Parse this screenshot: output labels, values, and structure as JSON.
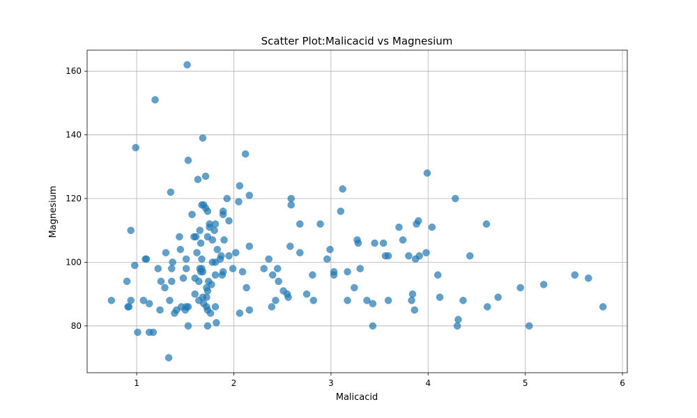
{
  "chart_data": {
    "type": "scatter",
    "title": "Scatter Plot:Malicacid vs Magnesium",
    "xlabel": "Malicacid",
    "ylabel": "Magnesium",
    "xlim": [
      0.49,
      6.05
    ],
    "ylim": [
      65.3,
      166.6
    ],
    "xticks": [
      1,
      2,
      3,
      4,
      5,
      6
    ],
    "xtick_labels": [
      "1",
      "2",
      "3",
      "4",
      "5",
      "6"
    ],
    "yticks": [
      80,
      100,
      120,
      140,
      160
    ],
    "ytick_labels": [
      "80",
      "100",
      "120",
      "140",
      "160"
    ],
    "grid": true,
    "marker_color": "#1f77b4",
    "marker_opacity": 0.7,
    "points": [
      [
        1.52,
        162
      ],
      [
        1.19,
        151
      ],
      [
        0.99,
        136
      ],
      [
        1.68,
        139
      ],
      [
        2.12,
        134
      ],
      [
        1.53,
        132
      ],
      [
        1.35,
        122
      ],
      [
        1.63,
        126
      ],
      [
        1.71,
        127
      ],
      [
        2.06,
        124
      ],
      [
        2.16,
        121
      ],
      [
        3.12,
        123
      ],
      [
        3.99,
        128
      ],
      [
        4.28,
        120
      ],
      [
        2.59,
        120
      ],
      [
        2.59,
        118
      ],
      [
        2.05,
        119
      ],
      [
        1.93,
        120
      ],
      [
        1.67,
        118
      ],
      [
        1.69,
        118
      ],
      [
        1.71,
        117
      ],
      [
        1.73,
        116
      ],
      [
        1.57,
        115
      ],
      [
        1.89,
        116
      ],
      [
        1.89,
        115
      ],
      [
        1.95,
        113
      ],
      [
        3.1,
        116
      ],
      [
        3.9,
        113
      ],
      [
        3.88,
        112
      ],
      [
        4.04,
        111
      ],
      [
        3.7,
        111
      ],
      [
        4.6,
        112
      ],
      [
        2.68,
        112
      ],
      [
        2.89,
        112
      ],
      [
        0.94,
        110
      ],
      [
        1.65,
        110
      ],
      [
        1.75,
        111
      ],
      [
        1.75,
        112
      ],
      [
        1.81,
        112
      ],
      [
        1.8,
        110
      ],
      [
        1.59,
        108
      ],
      [
        1.61,
        108
      ],
      [
        1.44,
        108
      ],
      [
        1.73,
        108
      ],
      [
        1.78,
        107
      ],
      [
        1.9,
        107
      ],
      [
        3.27,
        107
      ],
      [
        3.74,
        107
      ],
      [
        1.66,
        106
      ],
      [
        3.28,
        106
      ],
      [
        3.45,
        106
      ],
      [
        3.54,
        106
      ],
      [
        2.16,
        105
      ],
      [
        2.58,
        105
      ],
      [
        1.45,
        104
      ],
      [
        1.83,
        104
      ],
      [
        2.99,
        104
      ],
      [
        1.3,
        103
      ],
      [
        1.62,
        103
      ],
      [
        2.02,
        103
      ],
      [
        2.68,
        103
      ],
      [
        3.98,
        103
      ],
      [
        1.95,
        102
      ],
      [
        3.56,
        102
      ],
      [
        3.59,
        102
      ],
      [
        3.8,
        102
      ],
      [
        3.91,
        102
      ],
      [
        4.43,
        102
      ],
      [
        1.87,
        102
      ],
      [
        1.67,
        101
      ],
      [
        1.51,
        101
      ],
      [
        1.1,
        101
      ],
      [
        1.09,
        101
      ],
      [
        1.86,
        101
      ],
      [
        2.36,
        101
      ],
      [
        2.96,
        101
      ],
      [
        3.87,
        101
      ],
      [
        1.37,
        100
      ],
      [
        1.78,
        100
      ],
      [
        1.81,
        100
      ],
      [
        0.98,
        99
      ],
      [
        1.22,
        98
      ],
      [
        1.36,
        98
      ],
      [
        1.51,
        98
      ],
      [
        1.65,
        98
      ],
      [
        1.68,
        97
      ],
      [
        1.66,
        97
      ],
      [
        1.67,
        98
      ],
      [
        1.99,
        98
      ],
      [
        2.31,
        98
      ],
      [
        2.45,
        98
      ],
      [
        3.3,
        98
      ],
      [
        2.09,
        97
      ],
      [
        3.03,
        97
      ],
      [
        3.17,
        97
      ],
      [
        1.89,
        97
      ],
      [
        1.81,
        96
      ],
      [
        1.88,
        96
      ],
      [
        2.4,
        96
      ],
      [
        2.81,
        96
      ],
      [
        3.03,
        96
      ],
      [
        4.1,
        96
      ],
      [
        5.51,
        96
      ],
      [
        1.48,
        95
      ],
      [
        1.6,
        95
      ],
      [
        1.64,
        94
      ],
      [
        1.74,
        94
      ],
      [
        1.36,
        94
      ],
      [
        1.25,
        94
      ],
      [
        0.9,
        94
      ],
      [
        2.46,
        94
      ],
      [
        5.65,
        95
      ],
      [
        1.72,
        92
      ],
      [
        1.73,
        91
      ],
      [
        1.29,
        92
      ],
      [
        1.77,
        93
      ],
      [
        2.13,
        92
      ],
      [
        3.24,
        92
      ],
      [
        4.95,
        92
      ],
      [
        5.19,
        93
      ],
      [
        2.51,
        91
      ],
      [
        1.6,
        90
      ],
      [
        1.68,
        89
      ],
      [
        1.72,
        89
      ],
      [
        2.55,
        90
      ],
      [
        2.56,
        89
      ],
      [
        2.75,
        90
      ],
      [
        3.84,
        90
      ],
      [
        4.12,
        89
      ],
      [
        4.72,
        89
      ],
      [
        0.74,
        88
      ],
      [
        0.94,
        88
      ],
      [
        1.07,
        88
      ],
      [
        1.34,
        88
      ],
      [
        1.64,
        88
      ],
      [
        1.69,
        87
      ],
      [
        1.13,
        87
      ],
      [
        2.43,
        88
      ],
      [
        2.82,
        88
      ],
      [
        3.17,
        88
      ],
      [
        3.37,
        88
      ],
      [
        3.43,
        87
      ],
      [
        3.59,
        88
      ],
      [
        3.83,
        88
      ],
      [
        4.36,
        88
      ],
      [
        0.92,
        86
      ],
      [
        0.91,
        86
      ],
      [
        1.24,
        85
      ],
      [
        1.41,
        85
      ],
      [
        1.46,
        86
      ],
      [
        1.5,
        85
      ],
      [
        1.51,
        86
      ],
      [
        1.53,
        86
      ],
      [
        1.72,
        86
      ],
      [
        1.73,
        85
      ],
      [
        1.76,
        84
      ],
      [
        1.81,
        86
      ],
      [
        1.39,
        84
      ],
      [
        2.06,
        84
      ],
      [
        2.16,
        85
      ],
      [
        2.39,
        86
      ],
      [
        3.86,
        85
      ],
      [
        4.61,
        86
      ],
      [
        5.8,
        86
      ],
      [
        4.31,
        82
      ],
      [
        1.01,
        78
      ],
      [
        1.13,
        78
      ],
      [
        1.17,
        78
      ],
      [
        1.53,
        80
      ],
      [
        1.73,
        80
      ],
      [
        1.82,
        81
      ],
      [
        3.43,
        80
      ],
      [
        4.3,
        80
      ],
      [
        5.04,
        80
      ],
      [
        1.33,
        70
      ]
    ]
  }
}
